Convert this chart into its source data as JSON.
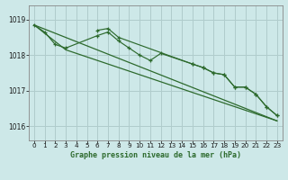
{
  "title": "Graphe pression niveau de la mer (hPa)",
  "background_color": "#cde8e8",
  "plot_bg": "#cde8e8",
  "grid_color": "#b0cccc",
  "line_color": "#2d6a2d",
  "ylim": [
    1015.6,
    1019.4
  ],
  "xlim": [
    -0.5,
    23.5
  ],
  "yticks": [
    1016,
    1017,
    1018,
    1019
  ],
  "xticks": [
    0,
    1,
    2,
    3,
    4,
    5,
    6,
    7,
    8,
    9,
    10,
    11,
    12,
    13,
    14,
    15,
    16,
    17,
    18,
    19,
    20,
    21,
    22,
    23
  ],
  "line1_x": [
    0,
    23
  ],
  "line1_y": [
    1018.85,
    1016.15
  ],
  "line2_x": [
    0,
    3,
    23
  ],
  "line2_y": [
    1018.85,
    1018.15,
    1016.15
  ],
  "line3_x": [
    0,
    1,
    2,
    3,
    6,
    7,
    8,
    9,
    10,
    11,
    12,
    15,
    16,
    17,
    18,
    19,
    20,
    21,
    22,
    23
  ],
  "line3_y": [
    1018.85,
    1018.65,
    1018.3,
    1018.2,
    1018.55,
    1018.65,
    1018.4,
    1018.2,
    1018.0,
    1017.85,
    1018.05,
    1017.75,
    1017.65,
    1017.5,
    1017.45,
    1017.1,
    1017.1,
    1016.9,
    1016.55,
    1016.3
  ],
  "line4_x": [
    6,
    7,
    8,
    15,
    16,
    17,
    18,
    19,
    20,
    21,
    22,
    23
  ],
  "line4_y": [
    1018.7,
    1018.75,
    1018.5,
    1017.75,
    1017.65,
    1017.5,
    1017.45,
    1017.1,
    1017.1,
    1016.9,
    1016.55,
    1016.3
  ]
}
